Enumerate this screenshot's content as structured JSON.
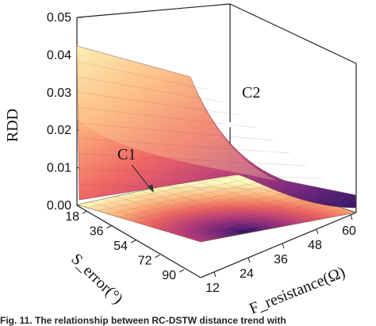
{
  "chart_data": {
    "type": "surface3d",
    "zlabel": "RDD",
    "xlabel": "S_error(°)",
    "ylabel": "F_resistance(Ω)",
    "zlim": [
      0.0,
      0.05
    ],
    "z_ticks": [
      "0.00",
      "0.01",
      "0.02",
      "0.03",
      "0.04",
      "0.05"
    ],
    "x_ticks": [
      "18",
      "36",
      "54",
      "72",
      "90"
    ],
    "y_ticks": [
      "12",
      "24",
      "36",
      "48",
      "60"
    ],
    "colormap": [
      "#2d1160",
      "#6b1f7a",
      "#b63679",
      "#ee605e",
      "#fdae78",
      "#fcfdbf"
    ],
    "surfaces": [
      {
        "name": "C2",
        "corners": [
          {
            "x": 18,
            "y": 12,
            "z": 0.043
          },
          {
            "x": 90,
            "y": 12,
            "z": 0.037
          },
          {
            "x": 90,
            "y": 60,
            "z": 0.001
          },
          {
            "x": 18,
            "y": 60,
            "z": 0.004
          }
        ]
      },
      {
        "name": "C1",
        "corners": [
          {
            "x": 18,
            "y": 12,
            "z": 0.0
          },
          {
            "x": 90,
            "y": 12,
            "z": -0.004
          },
          {
            "x": 90,
            "y": 60,
            "z": 0.0
          },
          {
            "x": 18,
            "y": 60,
            "z": 0.0
          }
        ]
      }
    ],
    "annotations": [
      "C1",
      "C2"
    ],
    "caption": "Fig. 11. The relationship between RC-DSTW distance trend with"
  }
}
